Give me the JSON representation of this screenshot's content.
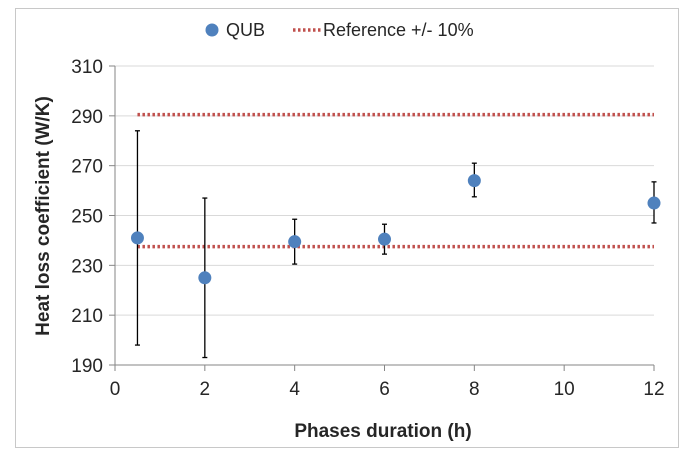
{
  "chart_data": {
    "type": "scatter",
    "xlabel": "Phases duration (h)",
    "ylabel": "Heat loss coefficient (W/K)",
    "xlim": [
      0,
      12
    ],
    "ylim": [
      190,
      310
    ],
    "xticks": [
      0,
      2,
      4,
      6,
      8,
      10,
      12
    ],
    "yticks": [
      190,
      210,
      230,
      250,
      270,
      290,
      310
    ],
    "grid": "horizontal",
    "legend_position": "top",
    "series": [
      {
        "name": "QUB",
        "type": "scatter",
        "color": "#4f81bd",
        "x": [
          0.5,
          2,
          4,
          6,
          8,
          12
        ],
        "y": [
          241,
          225,
          239.5,
          240.5,
          264,
          255
        ],
        "error_low": [
          198,
          193,
          230.5,
          234.5,
          257.5,
          247
        ],
        "error_high": [
          284,
          257,
          248.5,
          246.5,
          271,
          263.5
        ]
      },
      {
        "name": "Reference +/- 10%",
        "type": "line",
        "style": "dotted",
        "color": "#c0504d",
        "lines": [
          {
            "x": [
              0.5,
              12
            ],
            "y": [
              290.5,
              290.5
            ]
          },
          {
            "x": [
              0.5,
              12
            ],
            "y": [
              237.5,
              237.5
            ]
          }
        ]
      }
    ]
  }
}
